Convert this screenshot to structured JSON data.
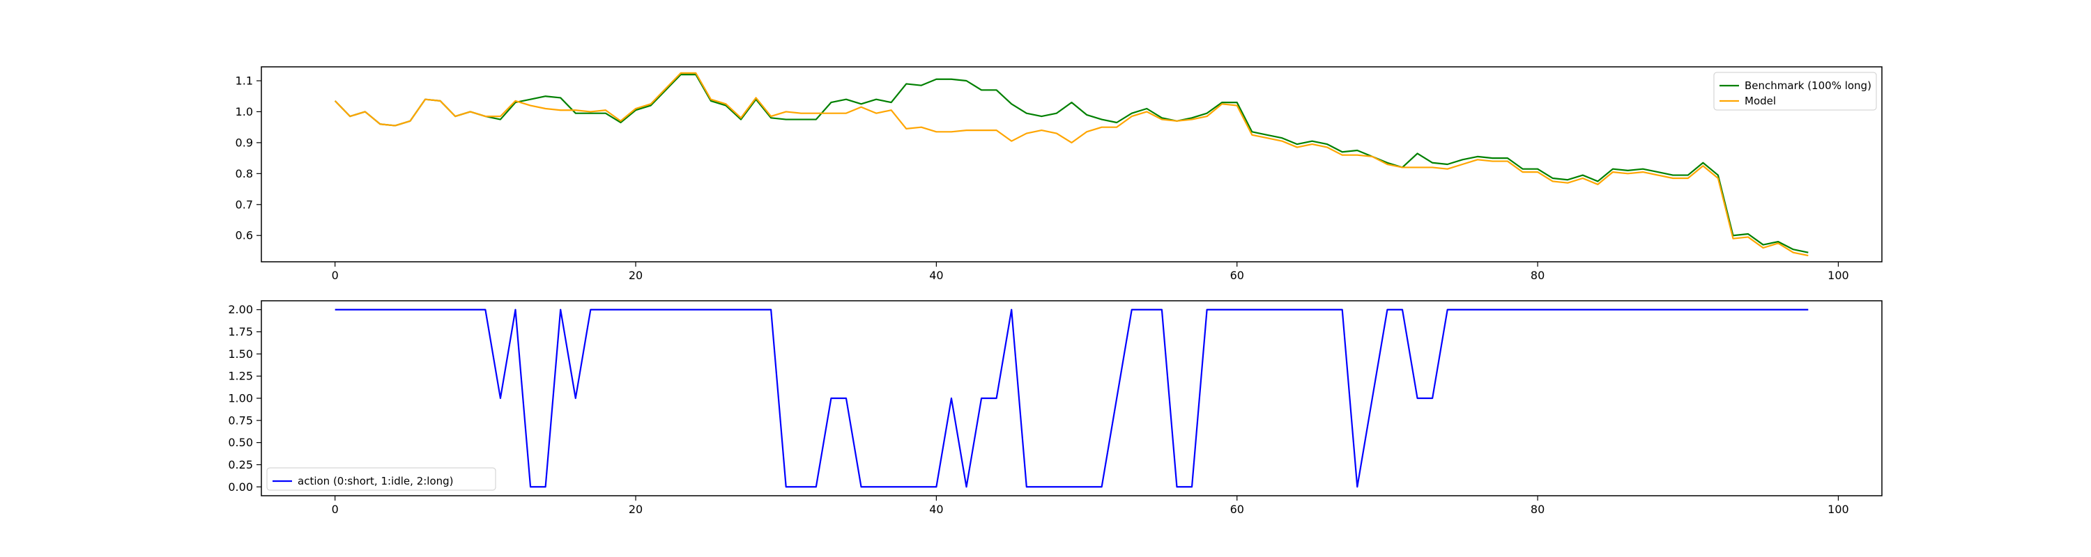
{
  "chart_data": [
    {
      "type": "line",
      "title": "",
      "xlabel": "",
      "ylabel": "",
      "xlim": [
        -4.9,
        102.9
      ],
      "ylim": [
        0.515,
        1.145
      ],
      "xticks": [
        0,
        20,
        40,
        60,
        80,
        100
      ],
      "yticks": [
        0.6,
        0.7,
        0.8,
        0.9,
        1.0,
        1.1
      ],
      "ytick_labels": [
        "0.6",
        "0.7",
        "0.8",
        "0.9",
        "1.0",
        "1.1"
      ],
      "grid": false,
      "legend_position": "top-right",
      "series": [
        {
          "name": "Benchmark (100% long)",
          "color": "#008000",
          "values": [
            1.035,
            0.985,
            1.0,
            0.96,
            0.955,
            0.97,
            1.04,
            1.035,
            0.985,
            1.0,
            0.985,
            0.975,
            1.03,
            1.04,
            1.05,
            1.045,
            0.995,
            0.995,
            0.995,
            0.965,
            1.005,
            1.02,
            1.07,
            1.12,
            1.12,
            1.035,
            1.02,
            0.975,
            1.04,
            0.98,
            0.975,
            0.975,
            0.975,
            1.03,
            1.04,
            1.025,
            1.04,
            1.03,
            1.09,
            1.085,
            1.105,
            1.105,
            1.1,
            1.07,
            1.07,
            1.025,
            0.995,
            0.985,
            0.995,
            1.03,
            0.99,
            0.975,
            0.965,
            0.995,
            1.01,
            0.98,
            0.97,
            0.98,
            0.995,
            1.03,
            1.03,
            0.935,
            0.925,
            0.915,
            0.895,
            0.905,
            0.895,
            0.87,
            0.875,
            0.855,
            0.835,
            0.82,
            0.865,
            0.835,
            0.83,
            0.845,
            0.855,
            0.85,
            0.85,
            0.815,
            0.815,
            0.785,
            0.78,
            0.795,
            0.775,
            0.815,
            0.81,
            0.815,
            0.805,
            0.795,
            0.795,
            0.835,
            0.795,
            0.6,
            0.605,
            0.57,
            0.58,
            0.555,
            0.545
          ]
        },
        {
          "name": "Model",
          "color": "#FFA500",
          "values": [
            1.035,
            0.985,
            1.0,
            0.96,
            0.955,
            0.97,
            1.04,
            1.035,
            0.985,
            1.0,
            0.985,
            0.985,
            1.035,
            1.02,
            1.01,
            1.005,
            1.005,
            1.0,
            1.005,
            0.97,
            1.01,
            1.025,
            1.075,
            1.125,
            1.125,
            1.04,
            1.025,
            0.98,
            1.045,
            0.985,
            1.0,
            0.995,
            0.995,
            0.995,
            0.995,
            1.015,
            0.995,
            1.005,
            0.945,
            0.95,
            0.935,
            0.935,
            0.94,
            0.94,
            0.94,
            0.905,
            0.93,
            0.94,
            0.93,
            0.9,
            0.935,
            0.95,
            0.95,
            0.985,
            1.0,
            0.975,
            0.97,
            0.975,
            0.985,
            1.025,
            1.02,
            0.925,
            0.915,
            0.905,
            0.885,
            0.895,
            0.885,
            0.86,
            0.86,
            0.855,
            0.83,
            0.82,
            0.82,
            0.82,
            0.815,
            0.83,
            0.845,
            0.84,
            0.84,
            0.805,
            0.805,
            0.775,
            0.77,
            0.785,
            0.765,
            0.805,
            0.8,
            0.805,
            0.795,
            0.785,
            0.785,
            0.825,
            0.785,
            0.59,
            0.595,
            0.56,
            0.575,
            0.545,
            0.535
          ]
        }
      ]
    },
    {
      "type": "line",
      "title": "",
      "xlabel": "",
      "ylabel": "",
      "xlim": [
        -4.9,
        102.9
      ],
      "ylim": [
        -0.1,
        2.1
      ],
      "xticks": [
        0,
        20,
        40,
        60,
        80,
        100
      ],
      "yticks": [
        0.0,
        0.25,
        0.5,
        0.75,
        1.0,
        1.25,
        1.5,
        1.75,
        2.0
      ],
      "ytick_labels": [
        "0.00",
        "0.25",
        "0.50",
        "0.75",
        "1.00",
        "1.25",
        "1.50",
        "1.75",
        "2.00"
      ],
      "grid": false,
      "legend_position": "bottom-left",
      "series": [
        {
          "name": "action (0:short, 1:idle, 2:long)",
          "color": "#0000FF",
          "values": [
            2,
            2,
            2,
            2,
            2,
            2,
            2,
            2,
            2,
            2,
            2,
            1,
            2,
            0,
            0,
            2,
            1,
            2,
            2,
            2,
            2,
            2,
            2,
            2,
            2,
            2,
            2,
            2,
            2,
            2,
            0,
            0,
            0,
            1,
            1,
            0,
            0,
            0,
            0,
            0,
            0,
            1,
            0,
            1,
            1,
            2,
            0,
            0,
            0,
            0,
            0,
            0,
            1,
            2,
            2,
            2,
            0,
            0,
            2,
            2,
            2,
            2,
            2,
            2,
            2,
            2,
            2,
            2,
            0,
            1,
            2,
            2,
            1,
            1,
            2,
            2,
            2,
            2,
            2,
            2,
            2,
            2,
            2,
            2,
            2,
            2,
            2,
            2,
            2,
            2,
            2,
            2,
            2,
            2,
            2,
            2,
            2,
            2,
            2
          ]
        }
      ]
    }
  ]
}
